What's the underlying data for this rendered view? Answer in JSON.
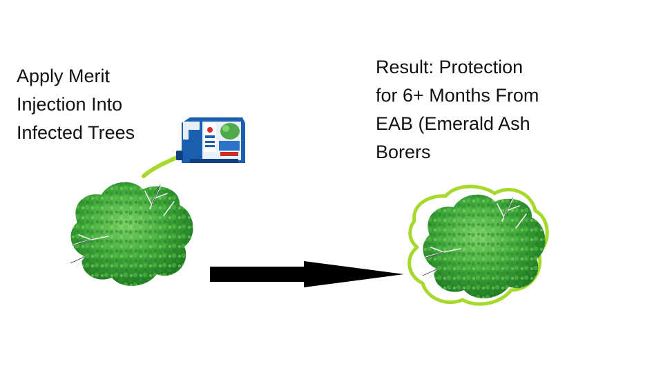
{
  "left_caption": {
    "lines": [
      "Apply Merit",
      "Injection Into",
      "Infected Trees"
    ]
  },
  "right_caption": {
    "lines": [
      "Result: Protection",
      "for 6+ Months From",
      "EAB (Emerald Ash",
      "Borers"
    ]
  },
  "icons": {
    "tree_left": "tree-icon",
    "tree_right": "protected-tree-icon",
    "product": "insecticide-jug-icon",
    "arrow": "arrow-right-icon"
  },
  "colors": {
    "foliage": "#3fa83a",
    "foliage_dark": "#1f7a23",
    "foliage_light": "#7fd36a",
    "protection_outline": "#a6d92c",
    "arrow": "#000000",
    "jug_blue": "#1b5fb0"
  }
}
